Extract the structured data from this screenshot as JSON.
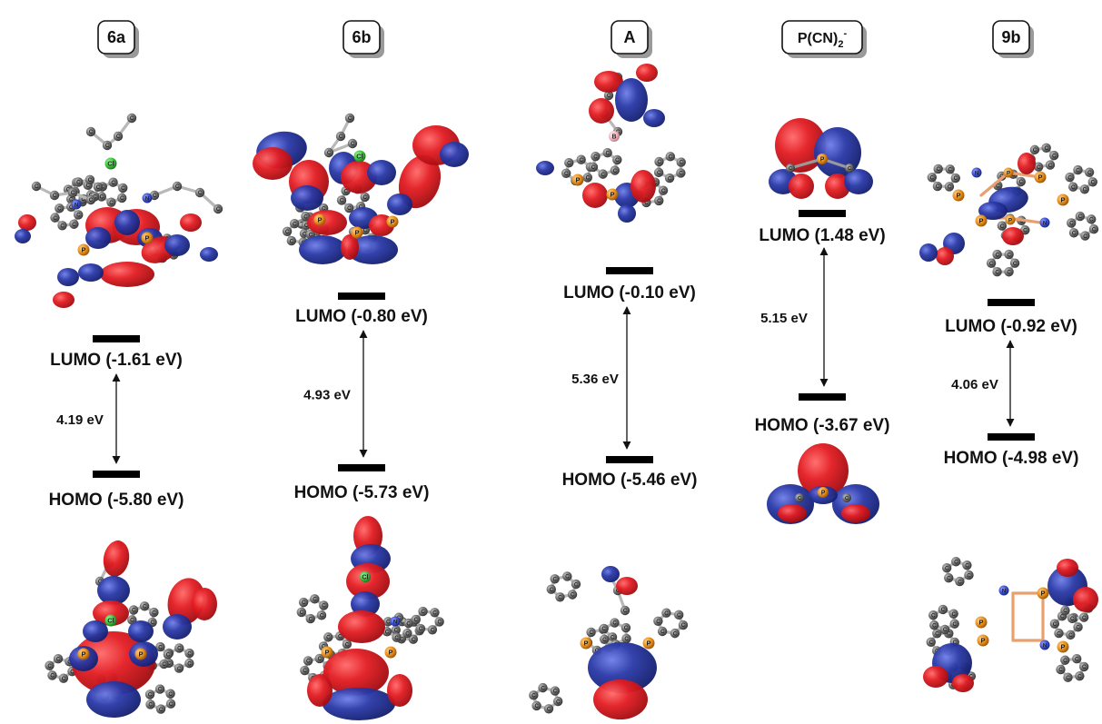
{
  "colors": {
    "positive_lobe": "#e31e24",
    "negative_lobe": "#2b3aa8",
    "carbon": "#6b6b6b",
    "phosphorus": "#e8901c",
    "chlorine": "#3cc43c",
    "nitrogen": "#3b4fd0",
    "boron": "#f3b8c0",
    "level_bar": "#000000"
  },
  "columns": [
    {
      "id": "6a",
      "header": "6a",
      "lumo_label": "LUMO (-1.61 eV)",
      "homo_label": "HOMO (-5.80 eV)",
      "gap_label": "4.19 eV",
      "lumo_ev": -1.61,
      "homo_ev": -5.8,
      "gap_ev": 4.19,
      "atom_labels": [
        "Cl",
        "N",
        "N",
        "P",
        "P",
        "Cl",
        "P",
        "P"
      ]
    },
    {
      "id": "6b",
      "header": "6b",
      "lumo_label": "LUMO (-0.80 eV)",
      "homo_label": "HOMO (-5.73 eV)",
      "gap_label": "4.93 eV",
      "lumo_ev": -0.8,
      "homo_ev": -5.73,
      "gap_ev": 4.93,
      "atom_labels": [
        "Cl",
        "P",
        "P",
        "P",
        "P",
        "Cl",
        "P",
        "P",
        "N"
      ]
    },
    {
      "id": "A",
      "header": "A",
      "lumo_label": "LUMO (-0.10 eV)",
      "homo_label": "HOMO (-5.46 eV)",
      "gap_label": "5.36 eV",
      "lumo_ev": -0.1,
      "homo_ev": -5.46,
      "gap_ev": 5.36,
      "atom_labels": [
        "B",
        "P",
        "P",
        "P",
        "P"
      ]
    },
    {
      "id": "PCN2",
      "header_main": "P(CN)",
      "header_sub": "2",
      "header_sup": "-",
      "lumo_label": "LUMO (1.48 eV)",
      "homo_label": "HOMO (-3.67 eV)",
      "gap_label": "5.15 eV",
      "lumo_ev": 1.48,
      "homo_ev": -3.67,
      "gap_ev": 5.15,
      "atom_labels": [
        "P",
        "P"
      ]
    },
    {
      "id": "9b",
      "header": "9b",
      "lumo_label": "LUMO (-0.92 eV)",
      "homo_label": "HOMO (-4.98 eV)",
      "gap_label": "4.06 eV",
      "lumo_ev": -0.92,
      "homo_ev": -4.98,
      "gap_ev": 4.06,
      "atom_labels": [
        "P",
        "P",
        "P",
        "P",
        "N",
        "N",
        "P",
        "P",
        "P",
        "P",
        "N",
        "N"
      ]
    }
  ]
}
